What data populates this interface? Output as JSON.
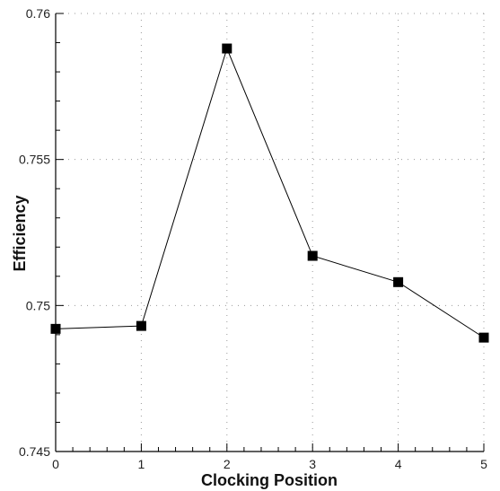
{
  "chart_data": {
    "type": "line",
    "xlabel": "Clocking Position",
    "ylabel": "Efficiency",
    "xlim": [
      0,
      5
    ],
    "ylim": [
      0.745,
      0.76
    ],
    "x_ticks": [
      0,
      1,
      2,
      3,
      4,
      5
    ],
    "y_tick_labels": [
      "0.745",
      "0.75",
      "0.755",
      "0.76"
    ],
    "y_tick_values": [
      0.745,
      0.75,
      0.755,
      0.76
    ],
    "grid": "dotted",
    "series": [
      {
        "x": [
          0,
          1,
          2,
          3,
          4,
          5
        ],
        "values": [
          0.7492,
          0.7493,
          0.7588,
          0.7517,
          0.7508,
          0.7489
        ],
        "marker": "square",
        "color": "#000000"
      }
    ]
  }
}
